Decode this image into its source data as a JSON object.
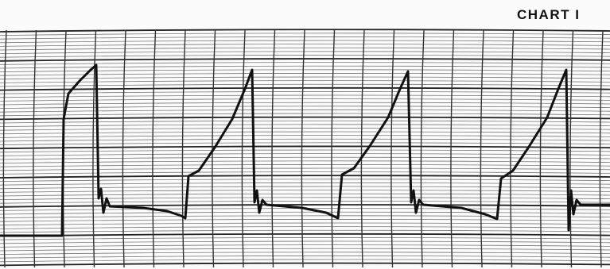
{
  "header": {
    "title": "CHART I"
  }
}
